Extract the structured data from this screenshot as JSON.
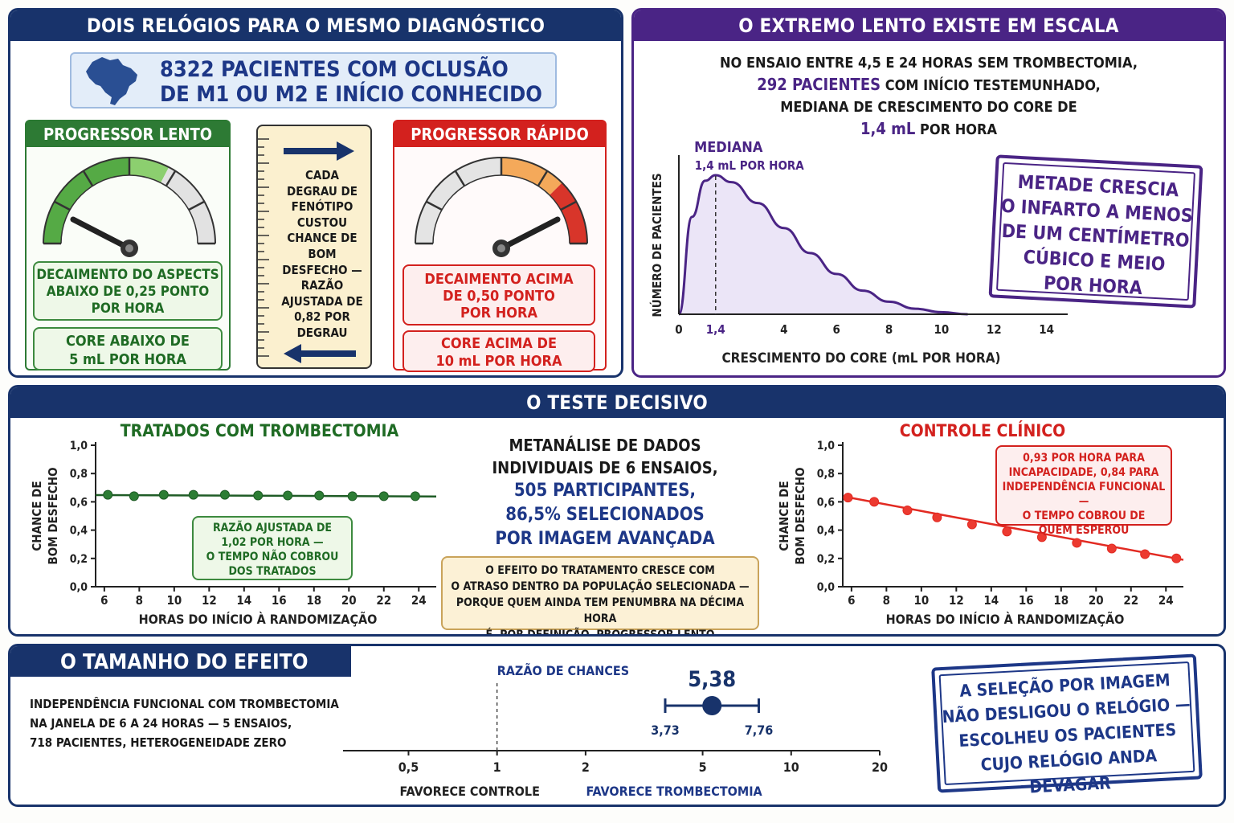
{
  "panel1": {
    "title": "DOIS RELÓGIOS PARA O MESMO DIAGNÓSTICO",
    "cohort_line1": "8322 PACIENTES COM OCLUSÃO",
    "cohort_line2": "DE M1 OU M2 E INÍCIO CONHECIDO",
    "slow": {
      "title": "PROGRESSOR LENTO",
      "aspects": [
        "DECAIMENTO DO ASPECTS",
        "ABAIXO DE 0,25 PONTO",
        "POR HORA"
      ],
      "core": [
        "CORE ABAIXO DE",
        "5 mL POR HORA"
      ]
    },
    "fast": {
      "title": "PROGRESSOR RÁPIDO",
      "aspects": [
        "DECAIMENTO ACIMA",
        "DE 0,50 PONTO",
        "POR HORA"
      ],
      "core": [
        "CORE ACIMA DE",
        "10 mL POR HORA"
      ]
    },
    "middle": [
      "CADA",
      "DEGRAU DE",
      "FENÓTIPO",
      "CUSTOU",
      "CHANCE DE",
      "BOM",
      "DESFECHO —",
      "RAZÃO",
      "AJUSTADA DE",
      "0,82 POR",
      "DEGRAU"
    ]
  },
  "panel2": {
    "title": "O EXTREMO LENTO EXISTE EM ESCALA",
    "line1": "NO ENSAIO ENTRE 4,5 E 24 HORAS SEM TROMBECTOMIA,",
    "line2a": "292 PACIENTES",
    "line2b": " COM INÍCIO TESTEMUNHADO,",
    "line3": "MEDIANA DE CRESCIMENTO DO CORE DE",
    "line4a": "1,4 mL",
    "line4b": " POR HORA",
    "stamp": [
      "METADE CRESCIA",
      "O INFARTO A MENOS",
      "DE UM CENTÍMETRO",
      "CÚBICO E MEIO",
      "POR HORA"
    ]
  },
  "panel3": {
    "title": "O TESTE DECISIVO",
    "treated_title": "TRATADOS COM TROMBECTOMIA",
    "treated_note": [
      "RAZÃO AJUSTADA DE",
      "1,02 POR HORA —",
      "O TEMPO NÃO COBROU",
      "DOS TRATADOS"
    ],
    "control_title": "CONTROLE CLÍNICO",
    "control_note": [
      "0,93 POR HORA PARA",
      "INCAPACIDADE, 0,84 PARA",
      "INDEPENDÊNCIA FUNCIONAL —",
      "O TEMPO COBROU DE",
      "QUEM ESPEROU"
    ],
    "center_black": [
      "METANÁLISE DE DADOS",
      "INDIVIDUAIS DE 6 ENSAIOS,"
    ],
    "center_blue": [
      "505 PARTICIPANTES,",
      "86,5% SELECIONADOS",
      "POR IMAGEM AVANÇADA"
    ],
    "effect_note": [
      "O EFEITO DO TRATAMENTO CRESCE COM",
      "O ATRASO DENTRO DA POPULAÇÃO SELECIONADA —",
      "PORQUE QUEM AINDA TEM PENUMBRA NA DÉCIMA HORA",
      "É, POR DEFINIÇÃO, PROGRESSOR LENTO"
    ]
  },
  "panel4": {
    "title": "O TAMANHO DO EFEITO",
    "desc": [
      "INDEPENDÊNCIA FUNCIONAL COM TROMBECTOMIA",
      "NA JANELA DE 6 A 24 HORAS — 5 ENSAIOS,",
      "718 PACIENTES, HETEROGENEIDADE ZERO"
    ],
    "stamp": [
      "A SELEÇÃO POR IMAGEM",
      "NÃO DESLIGOU O RELÓGIO —",
      "ESCOLHEU OS PACIENTES",
      "CUJO RELÓGIO ANDA DEVAGAR"
    ]
  },
  "colors": {
    "navy": "#18336b",
    "purple": "#4a2485",
    "green": "#1f6b24",
    "red": "#d3211e",
    "blue": "#1d3787"
  },
  "chart_data": [
    {
      "type": "area",
      "id": "core_growth",
      "xlabel": "CRESCIMENTO DO CORE (mL POR HORA)",
      "ylabel": "NÚMERO DE PACIENTES",
      "xlim": [
        0,
        14.5
      ],
      "xticks": [
        0,
        1.4,
        4,
        6,
        8,
        10,
        12,
        14
      ],
      "xtick_labels": [
        "0",
        "1,4",
        "4",
        "6",
        "8",
        "10",
        "12",
        "14"
      ],
      "x": [
        0,
        0.5,
        1.0,
        1.4,
        2,
        3,
        4,
        5,
        6,
        7,
        8,
        9,
        10,
        11
      ],
      "y": [
        0,
        0.7,
        0.96,
        1.0,
        0.95,
        0.8,
        0.62,
        0.44,
        0.29,
        0.17,
        0.09,
        0.04,
        0.015,
        0
      ],
      "median": 1.4,
      "median_label": "MEDIANA",
      "median_value_label": "1,4 mL POR HORA"
    },
    {
      "type": "line",
      "id": "treated",
      "title": "TRATADOS COM TROMBECTOMIA",
      "xlabel": "HORAS DO INÍCIO À RANDOMIZAÇÃO",
      "ylabel": "CHANCE DE BOM DESFECHO",
      "xlim": [
        5.5,
        25
      ],
      "ylim": [
        0,
        1.0
      ],
      "xticks": [
        6,
        8,
        10,
        12,
        14,
        16,
        18,
        20,
        22,
        24
      ],
      "yticks": [
        0,
        0.2,
        0.4,
        0.6,
        0.8,
        1.0
      ],
      "ytick_labels": [
        "0,0",
        "0,2",
        "0,4",
        "0,6",
        "0,8",
        "1,0"
      ],
      "x": [
        6.2,
        7.7,
        9.4,
        11.1,
        12.9,
        14.8,
        16.5,
        18.3,
        20.2,
        22.0,
        23.8
      ],
      "y": [
        0.65,
        0.64,
        0.65,
        0.65,
        0.65,
        0.645,
        0.645,
        0.645,
        0.64,
        0.64,
        0.64
      ],
      "fit": [
        [
          5.5,
          0.648
        ],
        [
          25,
          0.638
        ]
      ]
    },
    {
      "type": "line",
      "id": "control",
      "title": "CONTROLE CLÍNICO",
      "xlabel": "HORAS DO INÍCIO À RANDOMIZAÇÃO",
      "ylabel": "CHANCE DE BOM DESFECHO",
      "xlim": [
        5.5,
        25
      ],
      "ylim": [
        0,
        1.0
      ],
      "xticks": [
        6,
        8,
        10,
        12,
        14,
        16,
        18,
        20,
        22,
        24
      ],
      "yticks": [
        0,
        0.2,
        0.4,
        0.6,
        0.8,
        1.0
      ],
      "ytick_labels": [
        "0,0",
        "0,2",
        "0,4",
        "0,6",
        "0,8",
        "1,0"
      ],
      "x": [
        5.8,
        7.3,
        9.2,
        10.9,
        12.9,
        14.9,
        16.9,
        18.9,
        20.9,
        22.8,
        24.6
      ],
      "y": [
        0.63,
        0.6,
        0.54,
        0.49,
        0.44,
        0.39,
        0.35,
        0.31,
        0.27,
        0.23,
        0.2
      ],
      "fit": [
        [
          5.8,
          0.632
        ],
        [
          25,
          0.19
        ]
      ]
    },
    {
      "type": "scatter",
      "id": "forest",
      "title": "RAZÃO DE CHANCES",
      "scale": "log",
      "xlim": [
        0.4,
        20
      ],
      "xticks": [
        0.5,
        1,
        2,
        5,
        10,
        20
      ],
      "xtick_labels": [
        "0,5",
        "1",
        "2",
        "5",
        "10",
        "20"
      ],
      "estimate": 5.38,
      "estimate_label": "5,38",
      "ci": [
        3.73,
        7.76
      ],
      "ci_labels": [
        "3,73",
        "7,76"
      ],
      "left_label": "FAVORECE CONTROLE",
      "right_label": "FAVORECE TROMBECTOMIA"
    }
  ]
}
